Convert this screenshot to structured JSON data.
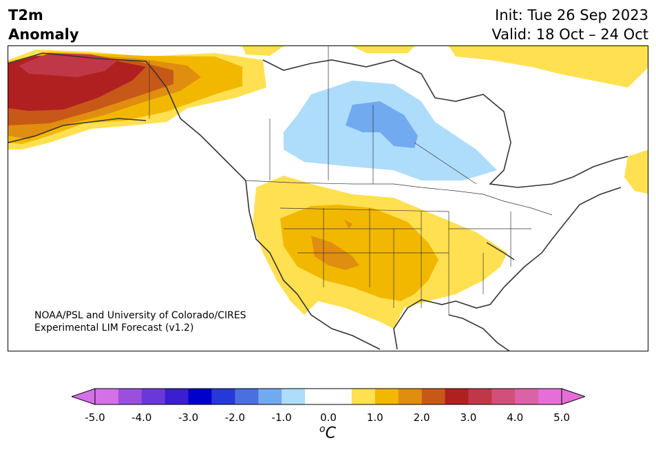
{
  "title": {
    "line1": "T2m",
    "line2": "Anomaly"
  },
  "forecast": {
    "init": "Init: Tue 26 Sep 2023",
    "valid": "Valid: 18 Oct – 24 Oct"
  },
  "credit": {
    "line1": "NOAA/PSL and University of Colorado/CIRES",
    "line2": "Experimental LIM Forecast (v1.2)"
  },
  "colorbar": {
    "unit": "C",
    "unit_prefix": "o",
    "ticks": [
      "-5.0",
      "-4.0",
      "-3.0",
      "-2.0",
      "-1.0",
      "0.0",
      "1.0",
      "2.0",
      "3.0",
      "4.0",
      "5.0"
    ],
    "colors": [
      "#d470e8",
      "#9a50dc",
      "#6a38d8",
      "#3a1ed0",
      "#0000cc",
      "#2738d8",
      "#4a6fe0",
      "#72aaf0",
      "#aedcfb",
      "#ffffff",
      "#ffffff",
      "#ffe050",
      "#f2b800",
      "#e08e10",
      "#c85818",
      "#b02020",
      "#c03848",
      "#d0507a",
      "#dc62a8",
      "#e66ed8"
    ],
    "low_extend_color": "#d470e8",
    "high_extend_color": "#e66ed8"
  },
  "map": {
    "colors": {
      "land": "#ffffff",
      "coast": "#333333",
      "warm_1": "#ffe050",
      "warm_2": "#f2b800",
      "warm_3": "#e08e10",
      "warm_4": "#c85818",
      "warm_5": "#b02020",
      "warm_6": "#c03848",
      "cool_1": "#aedcfb",
      "cool_2": "#72aaf0"
    }
  }
}
